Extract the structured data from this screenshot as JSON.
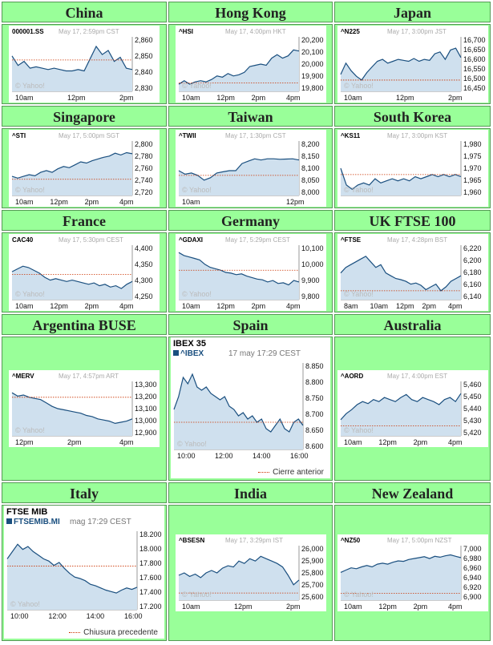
{
  "page": {
    "background": "#ffffff",
    "cell_color": "#99ff99",
    "line_color": "#1a4f7f",
    "fill_color": "#cfe0ee",
    "ref_color": "#cc3300"
  },
  "markets": [
    {
      "country": "China",
      "symbol": "000001.SS",
      "date": "May 17, 2:59pm CST",
      "yticks": [
        "2,860",
        "2,850",
        "2,840",
        "2,830"
      ],
      "xticks": [
        "10am",
        "12pm",
        "2pm"
      ],
      "credit": "© Yahoo!",
      "ref": 2849,
      "chart_data": {
        "type": "area",
        "ylim": [
          2826,
          2866
        ],
        "values": [
          2852,
          2845,
          2848,
          2843,
          2844,
          2843,
          2842,
          2843,
          2842,
          2841,
          2841,
          2842,
          2841,
          2850,
          2859,
          2853,
          2856,
          2848,
          2851,
          2843,
          2842
        ]
      }
    },
    {
      "country": "Hong Kong",
      "symbol": "^HSI",
      "date": "May 17, 4:00pm HKT",
      "yticks": [
        "20,200",
        "20,100",
        "20,000",
        "19,900",
        "19,800"
      ],
      "xticks": [
        "10am",
        "12pm",
        "2pm",
        "4pm"
      ],
      "credit": "© Yahoo!",
      "ref": 19840,
      "chart_data": {
        "type": "area",
        "ylim": [
          19770,
          20230
        ],
        "values": [
          19830,
          19860,
          19830,
          19850,
          19860,
          19850,
          19870,
          19900,
          19890,
          19920,
          19900,
          19910,
          19930,
          19980,
          19990,
          20000,
          19990,
          20050,
          20080,
          20050,
          20070,
          20120,
          20110
        ]
      }
    },
    {
      "country": "Japan",
      "symbol": "^N225",
      "date": "May 17, 3:00pm JST",
      "yticks": [
        "16,700",
        "16,650",
        "16,600",
        "16,550",
        "16,500",
        "16,450"
      ],
      "xticks": [
        "10am",
        "12pm",
        "2pm"
      ],
      "credit": "© Yahoo!",
      "ref": 16490,
      "chart_data": {
        "type": "area",
        "ylim": [
          16430,
          16720
        ],
        "values": [
          16520,
          16580,
          16540,
          16510,
          16490,
          16530,
          16560,
          16590,
          16600,
          16580,
          16590,
          16600,
          16595,
          16590,
          16605,
          16590,
          16600,
          16595,
          16630,
          16640,
          16600,
          16650,
          16660,
          16610
        ]
      }
    },
    {
      "country": "Singapore",
      "symbol": "^STI",
      "date": "May 17, 5:00pm SGT",
      "yticks": [
        "2,800",
        "2,780",
        "2,760",
        "2,740",
        "2,720"
      ],
      "xticks": [
        "10am",
        "12pm",
        "2pm",
        "4pm"
      ],
      "credit": "© Yahoo!",
      "ref": 2740,
      "chart_data": {
        "type": "area",
        "ylim": [
          2712,
          2806
        ],
        "values": [
          2745,
          2742,
          2745,
          2748,
          2746,
          2752,
          2755,
          2752,
          2758,
          2762,
          2760,
          2765,
          2770,
          2768,
          2772,
          2775,
          2778,
          2780,
          2785,
          2782,
          2786,
          2784
        ]
      }
    },
    {
      "country": "Taiwan",
      "symbol": "^TWII",
      "date": "May 17, 1:30pm CST",
      "yticks": [
        "8,200",
        "8,150",
        "8,100",
        "8,050",
        "8,000"
      ],
      "xticks": [
        "10am",
        "12pm"
      ],
      "credit": "© Yahoo!",
      "ref": 8070,
      "chart_data": {
        "type": "area",
        "ylim": [
          7985,
          8215
        ],
        "values": [
          8090,
          8075,
          8080,
          8070,
          8050,
          8060,
          8080,
          8085,
          8090,
          8090,
          8120,
          8130,
          8140,
          8135,
          8140,
          8140,
          8138,
          8139,
          8140,
          8135
        ]
      }
    },
    {
      "country": "South Korea",
      "symbol": "^KS11",
      "date": "May 17, 3:00pm KST",
      "yticks": [
        "1,980",
        "1,975",
        "1,970",
        "1,965",
        "1,960"
      ],
      "xticks": [],
      "credit": "© Yahoo!",
      "ref": 1967,
      "chart_data": {
        "type": "area",
        "ylim": [
          1957,
          1983
        ],
        "values": [
          1970,
          1962,
          1960,
          1962,
          1963,
          1962,
          1965,
          1963,
          1964,
          1965,
          1964,
          1965,
          1964,
          1966,
          1965,
          1966,
          1967,
          1966,
          1967,
          1966,
          1967,
          1966
        ]
      }
    },
    {
      "country": "France",
      "symbol": "CAC40",
      "date": "May 17, 5:30pm CEST",
      "yticks": [
        "4,400",
        "4,350",
        "4,300",
        "4,250"
      ],
      "xticks": [
        "10am",
        "12pm",
        "2pm",
        "4pm"
      ],
      "credit": "© Yahoo!",
      "ref": 4320,
      "chart_data": {
        "type": "area",
        "ylim": [
          4230,
          4425
        ],
        "values": [
          4330,
          4340,
          4350,
          4345,
          4335,
          4325,
          4310,
          4300,
          4305,
          4300,
          4295,
          4300,
          4295,
          4290,
          4285,
          4290,
          4280,
          4285,
          4275,
          4280,
          4270,
          4285,
          4295
        ]
      }
    },
    {
      "country": "Germany",
      "symbol": "^GDAXI",
      "date": "May 17, 5:29pm CEST",
      "yticks": [
        "10,100",
        "10,000",
        "9,900",
        "9,800"
      ],
      "xticks": [
        "10am",
        "12pm",
        "2pm",
        "4pm"
      ],
      "credit": "© Yahoo!",
      "ref": 9960,
      "chart_data": {
        "type": "area",
        "ylim": [
          9760,
          10130
        ],
        "values": [
          10080,
          10060,
          10050,
          10040,
          10030,
          10000,
          9980,
          9970,
          9960,
          9945,
          9940,
          9930,
          9935,
          9920,
          9910,
          9900,
          9895,
          9880,
          9890,
          9870,
          9875,
          9860,
          9890,
          9880
        ]
      }
    },
    {
      "country": "UK FTSE 100",
      "symbol": "^FTSE",
      "date": "May 17, 4:28pm BST",
      "yticks": [
        "6,220",
        "6,200",
        "6,180",
        "6,160",
        "6,140"
      ],
      "xticks": [
        "8am",
        "10am",
        "12pm",
        "2pm",
        "4pm"
      ],
      "credit": "© Yahoo!",
      "ref": 6148,
      "chart_data": {
        "type": "area",
        "ylim": [
          6132,
          6230
        ],
        "values": [
          6180,
          6190,
          6195,
          6200,
          6205,
          6210,
          6200,
          6190,
          6195,
          6180,
          6175,
          6170,
          6168,
          6165,
          6160,
          6162,
          6158,
          6150,
          6155,
          6160,
          6148,
          6155,
          6165,
          6170,
          6175
        ]
      }
    },
    {
      "country": "Argentina BUSE",
      "symbol": "^MERV",
      "date": "May 17, 4:57pm ART",
      "yticks": [
        "13,300",
        "13,200",
        "13,100",
        "13,000",
        "12,900"
      ],
      "xticks": [
        "12pm",
        "2pm",
        "4pm"
      ],
      "credit": "© Yahoo!",
      "ref": 13200,
      "chart_data": {
        "type": "area",
        "ylim": [
          12860,
          13340
        ],
        "values": [
          13240,
          13210,
          13220,
          13200,
          13190,
          13180,
          13150,
          13120,
          13100,
          13090,
          13080,
          13070,
          13060,
          13040,
          13030,
          13010,
          13000,
          12990,
          12970,
          12980,
          12990,
          13010
        ]
      }
    },
    {
      "country": "Spain",
      "title": "IBEX 35",
      "symbol": "^IBEX",
      "date": "17 may 17:29 CEST",
      "yticks": [
        "8.850",
        "8.800",
        "8.750",
        "8.700",
        "8.650",
        "8.600"
      ],
      "xticks": [
        "10:00",
        "12:00",
        "14:00",
        "16:00"
      ],
      "credit": "© Yahoo!",
      "legend": "Cierre anterior",
      "ref": 8680,
      "chart_data": {
        "type": "area",
        "ylim": [
          8595,
          8865
        ],
        "values": [
          8720,
          8760,
          8820,
          8800,
          8830,
          8790,
          8780,
          8790,
          8770,
          8760,
          8750,
          8760,
          8730,
          8720,
          8700,
          8710,
          8690,
          8700,
          8680,
          8690,
          8660,
          8650,
          8670,
          8690,
          8660,
          8650,
          8680,
          8690,
          8670
        ]
      }
    },
    {
      "country": "Australia",
      "symbol": "^AORD",
      "date": "May 17, 4:00pm EST",
      "yticks": [
        "5,460",
        "5,450",
        "5,440",
        "5,430",
        "5,420"
      ],
      "xticks": [
        "10am",
        "12pm",
        "2pm",
        "4pm"
      ],
      "credit": "© Yahoo!",
      "ref": 5424,
      "chart_data": {
        "type": "area",
        "ylim": [
          5414,
          5468
        ],
        "values": [
          5430,
          5436,
          5440,
          5445,
          5448,
          5446,
          5450,
          5448,
          5452,
          5450,
          5448,
          5452,
          5455,
          5450,
          5448,
          5452,
          5450,
          5448,
          5445,
          5450,
          5452,
          5448,
          5456
        ]
      }
    },
    {
      "country": "Italy",
      "title": "FTSE MIB",
      "symbol": "FTSEMIB.MI",
      "date": "mag 17:29 CEST",
      "yticks": [
        "18.200",
        "18.000",
        "17.800",
        "17.600",
        "17.400",
        "17.200"
      ],
      "xticks": [
        "10:00",
        "12:00",
        "14:00",
        "16:00"
      ],
      "credit": "© Yahoo!",
      "legend": "Chiusura precedente",
      "ref": 17750,
      "chart_data": {
        "type": "area",
        "ylim": [
          17150,
          18230
        ],
        "values": [
          17850,
          17950,
          18050,
          17980,
          18020,
          17950,
          17900,
          17850,
          17820,
          17760,
          17800,
          17720,
          17650,
          17600,
          17580,
          17550,
          17500,
          17480,
          17450,
          17420,
          17400,
          17380,
          17420,
          17450,
          17430,
          17460
        ]
      }
    },
    {
      "country": "India",
      "symbol": "^BSESN",
      "date": "May 17, 3:29pm IST",
      "yticks": [
        "26,000",
        "25,900",
        "25,800",
        "25,700",
        "25,600"
      ],
      "xticks": [
        "10am",
        "12pm",
        "2pm"
      ],
      "credit": "© Yahoo!",
      "ref": 25630,
      "chart_data": {
        "type": "area",
        "ylim": [
          25570,
          26030
        ],
        "values": [
          25780,
          25800,
          25770,
          25790,
          25760,
          25800,
          25820,
          25800,
          25840,
          25860,
          25850,
          25900,
          25880,
          25920,
          25900,
          25940,
          25920,
          25900,
          25880,
          25850,
          25780,
          25700,
          25740
        ]
      }
    },
    {
      "country": "New Zealand",
      "symbol": "^NZ50",
      "date": "May 17, 5:00pm NZST",
      "yticks": [
        "7,000",
        "6,980",
        "6,960",
        "6,940",
        "6,920",
        "6,900"
      ],
      "xticks": [
        "10am",
        "12pm",
        "2pm",
        "4pm"
      ],
      "credit": "© Yahoo!",
      "ref": 6905,
      "chart_data": {
        "type": "area",
        "ylim": [
          6890,
          7008
        ],
        "values": [
          6950,
          6955,
          6960,
          6958,
          6962,
          6965,
          6962,
          6968,
          6970,
          6968,
          6972,
          6975,
          6974,
          6978,
          6980,
          6982,
          6984,
          6980,
          6985,
          6983,
          6986,
          6988,
          6985,
          6982
        ]
      }
    }
  ]
}
